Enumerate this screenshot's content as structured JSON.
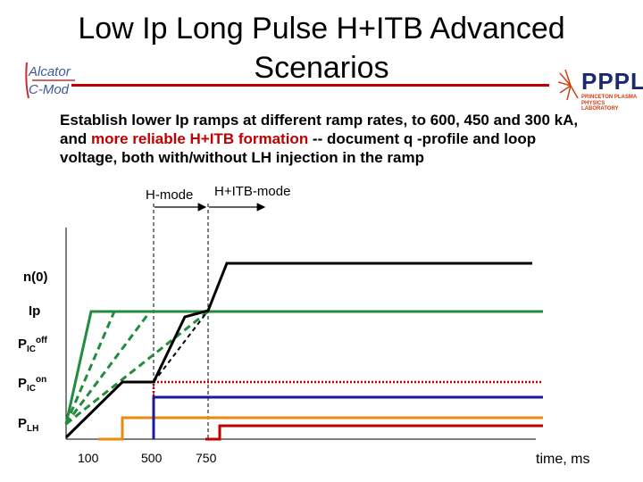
{
  "title": {
    "line1": "Low Ip Long Pulse H+ITB Advanced",
    "line2": "Scenarios"
  },
  "logos": {
    "left": {
      "line1": "Alcator",
      "line2": "C-Mod"
    },
    "right": {
      "main": "PPPL",
      "sub1": "PRINCETON PLASMA",
      "sub2": "PHYSICS LABORATORY"
    }
  },
  "description": {
    "part1": "Establish lower Ip ramps at different ramp rates, to 600, 450 and 300 kA, and ",
    "red": "more reliable H+ITB formation",
    "part2": " --  document q -profile and loop voltage, both with/without LH injection in the ramp"
  },
  "phases": {
    "hmode": "H-mode",
    "hitb": "H+ITB-mode"
  },
  "signals": {
    "n0": "n(0)",
    "ip": "Ip",
    "pic_off_base": "P",
    "pic_off_sub": "IC",
    "pic_off_sup": "off",
    "pic_on_base": "P",
    "pic_on_sub": "IC",
    "pic_on_sup": "on",
    "plh_base": "P",
    "plh_sub": "LH"
  },
  "axis": {
    "ticks": [
      "100",
      "500",
      "750"
    ],
    "xlabel": "time, ms"
  },
  "colors": {
    "ip": "#228b3c",
    "ic": "#1a1aa0",
    "ic_on": "#c00000",
    "lh": "#e88a10",
    "n0": "#000000",
    "rule": "#c00000"
  }
}
